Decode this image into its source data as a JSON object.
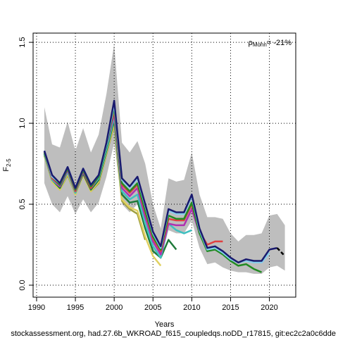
{
  "chart_data": {
    "type": "line",
    "xlabel": "Years",
    "ylabel": "F",
    "ylabel_sub": "2-5",
    "annotation": {
      "symbol": "ρ",
      "sub": "Mohn",
      "text": "= -21%"
    },
    "footer": "stockassessment.org, had.27.6b_WKROAD_f615_coupledqs.noDD_r17815, git:ec2c2a0c6dde",
    "x": [
      1991,
      1992,
      1993,
      1994,
      1995,
      1996,
      1997,
      1998,
      1999,
      2000,
      2001,
      2002,
      2003,
      2004,
      2005,
      2006,
      2007,
      2008,
      2009,
      2010,
      2011,
      2012,
      2013,
      2014,
      2015,
      2016,
      2017,
      2018,
      2019,
      2020,
      2021,
      2022
    ],
    "band_color": "#bebebe",
    "band_upper": [
      1.1,
      0.87,
      0.85,
      1.01,
      0.83,
      0.97,
      0.82,
      0.93,
      1.18,
      1.49,
      0.88,
      0.82,
      0.89,
      0.75,
      0.5,
      0.35,
      0.66,
      0.64,
      0.65,
      0.82,
      0.56,
      0.42,
      0.42,
      0.41,
      0.32,
      0.27,
      0.31,
      0.31,
      0.32,
      0.43,
      0.44,
      0.37
    ],
    "band_lower": [
      0.63,
      0.5,
      0.45,
      0.55,
      0.44,
      0.53,
      0.45,
      0.51,
      0.67,
      0.88,
      0.5,
      0.45,
      0.5,
      0.34,
      0.22,
      0.16,
      0.34,
      0.32,
      0.32,
      0.4,
      0.23,
      0.13,
      0.14,
      0.11,
      0.09,
      0.08,
      0.08,
      0.07,
      0.07,
      0.11,
      0.12,
      0.09
    ],
    "series": [
      {
        "color": "#a0a040",
        "values": [
          0.8,
          0.64,
          0.59,
          0.68,
          0.56,
          0.68,
          0.58,
          0.63,
          0.81,
          0.99,
          0.52,
          0.47,
          0.44,
          0.28,
          null,
          null,
          null,
          null,
          null,
          null,
          null,
          null,
          null,
          null,
          null,
          null,
          null,
          null,
          null,
          null,
          null,
          null
        ]
      },
      {
        "color": "#e0d060",
        "values": [
          0.8,
          0.64,
          0.59,
          0.69,
          0.56,
          0.68,
          0.58,
          0.64,
          0.82,
          1.0,
          0.53,
          0.48,
          0.46,
          0.3,
          0.18,
          0.12,
          null,
          null,
          null,
          null,
          null,
          null,
          null,
          null,
          null,
          null,
          null,
          null,
          null,
          null,
          null,
          null
        ]
      },
      {
        "color": "#1f7a3a",
        "values": [
          0.81,
          0.65,
          0.6,
          0.7,
          0.57,
          0.69,
          0.59,
          0.65,
          0.83,
          1.02,
          0.56,
          0.51,
          0.52,
          0.35,
          0.21,
          0.17,
          0.28,
          0.22,
          null,
          null,
          null,
          null,
          null,
          null,
          null,
          null,
          null,
          null,
          null,
          null,
          null,
          null
        ]
      },
      {
        "color": "#40c0c0",
        "values": [
          0.81,
          0.65,
          0.61,
          0.7,
          0.57,
          0.7,
          0.6,
          0.66,
          0.84,
          1.04,
          0.58,
          0.53,
          0.56,
          0.38,
          0.24,
          0.17,
          0.38,
          0.34,
          0.32,
          0.34,
          null,
          null,
          null,
          null,
          null,
          null,
          null,
          null,
          null,
          null,
          null,
          null
        ]
      },
      {
        "color": "#b030b0",
        "values": [
          0.82,
          0.66,
          0.61,
          0.71,
          0.58,
          0.7,
          0.6,
          0.67,
          0.86,
          1.06,
          0.6,
          0.55,
          0.6,
          0.42,
          0.27,
          0.19,
          0.38,
          0.37,
          0.37,
          0.47,
          0.32,
          0.22,
          null,
          null,
          null,
          null,
          null,
          null,
          null,
          null,
          null,
          null
        ]
      },
      {
        "color": "#e04040",
        "values": [
          0.82,
          0.66,
          0.62,
          0.72,
          0.58,
          0.71,
          0.6,
          0.68,
          0.87,
          1.08,
          0.62,
          0.57,
          0.62,
          0.45,
          0.29,
          0.21,
          0.41,
          0.4,
          0.4,
          0.5,
          0.33,
          0.25,
          0.27,
          0.27,
          null,
          null,
          null,
          null,
          null,
          null,
          null,
          null
        ]
      },
      {
        "color": "#228b22",
        "values": [
          0.82,
          0.67,
          0.62,
          0.72,
          0.59,
          0.71,
          0.61,
          0.67,
          0.86,
          1.1,
          0.63,
          0.58,
          0.63,
          0.46,
          0.3,
          0.22,
          0.43,
          0.41,
          0.41,
          0.51,
          0.32,
          0.21,
          0.22,
          0.19,
          0.15,
          0.12,
          0.13,
          0.1,
          0.08,
          null,
          null,
          null
        ]
      },
      {
        "color": "#87ceeb",
        "values": [
          0.83,
          0.67,
          0.63,
          0.73,
          0.6,
          0.72,
          0.62,
          0.68,
          0.87,
          1.12,
          0.65,
          0.6,
          0.66,
          0.49,
          0.32,
          0.23,
          0.46,
          0.44,
          0.44,
          0.55,
          0.34,
          0.22,
          0.23,
          0.2,
          0.16,
          0.14,
          0.15,
          0.14,
          0.14,
          0.2,
          null,
          null
        ]
      },
      {
        "color": "#1a1a6e",
        "values": [
          0.83,
          0.68,
          0.63,
          0.73,
          0.6,
          0.72,
          0.62,
          0.68,
          0.88,
          1.14,
          0.66,
          0.61,
          0.67,
          0.5,
          0.33,
          0.24,
          0.47,
          0.45,
          0.45,
          0.56,
          0.35,
          0.23,
          0.24,
          0.21,
          0.17,
          0.14,
          0.16,
          0.15,
          0.15,
          0.22,
          0.23,
          null
        ]
      },
      {
        "color": "#000000",
        "dashed": true,
        "values": [
          null,
          null,
          null,
          null,
          null,
          null,
          null,
          null,
          null,
          null,
          null,
          null,
          null,
          null,
          null,
          null,
          null,
          null,
          null,
          null,
          null,
          null,
          null,
          null,
          null,
          null,
          null,
          null,
          null,
          null,
          0.23,
          0.18
        ]
      }
    ],
    "xlim": [
      1989.55,
      2023.4
    ],
    "ylim": [
      -0.074,
      1.557
    ],
    "xticks": [
      1990,
      1995,
      2000,
      2005,
      2010,
      2015,
      2020
    ],
    "yticks": [
      {
        "value": 0,
        "label": "0.0"
      },
      {
        "value": 0.5,
        "label": "0.5"
      },
      {
        "value": 1,
        "label": "1.0"
      },
      {
        "value": 1.5,
        "label": "1.5"
      }
    ],
    "grid": true
  }
}
